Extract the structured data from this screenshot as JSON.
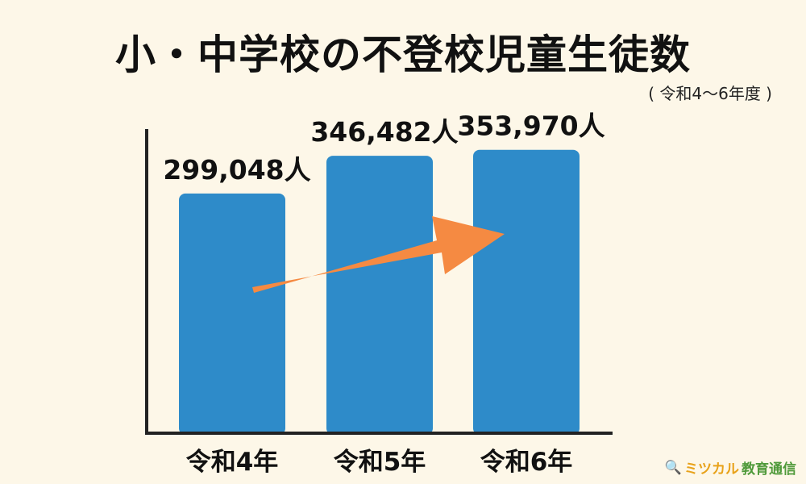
{
  "title": "小・中学校の不登校児童生徒数",
  "subtitle": "( 令和4〜6年度 )",
  "chart_data": {
    "type": "bar",
    "categories": [
      "令和4年",
      "令和5年",
      "令和6年"
    ],
    "values": [
      299048,
      346482,
      353970
    ],
    "value_labels": [
      "299,048人",
      "346,482人",
      "353,970人"
    ],
    "ylim": [
      0,
      380000
    ],
    "grid": false,
    "bar_color": "#2e8bc9",
    "annotation": "orange arrow indicating increase",
    "arrow_color": "#f58a42"
  },
  "brand": {
    "icon": "magnifier-icon",
    "name_kana": "ミツカル",
    "name_rest": "教育通信"
  }
}
